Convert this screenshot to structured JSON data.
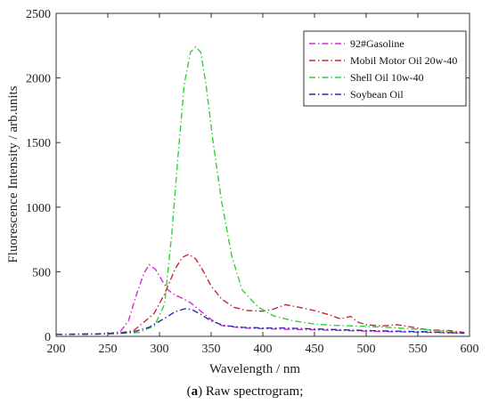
{
  "caption": {
    "open": "(",
    "letter": "a",
    "rest": ") Raw spectrogram;"
  },
  "chart_data": {
    "type": "line",
    "xlabel": "Wavelength / nm",
    "ylabel": "Fluorescence Intensity / arb.units",
    "xlim": [
      200,
      600
    ],
    "ylim": [
      0,
      2500
    ],
    "xticks": [
      200,
      250,
      300,
      350,
      400,
      450,
      500,
      550,
      600
    ],
    "yticks": [
      0,
      500,
      1000,
      1500,
      2000,
      2500
    ],
    "grid": false,
    "legend_position": "top-right",
    "series": [
      {
        "name": "92#Gasoline",
        "color": "#d42ad4",
        "x": [
          200,
          230,
          250,
          262,
          270,
          278,
          285,
          290,
          296,
          302,
          308,
          315,
          322,
          330,
          340,
          350,
          360,
          380,
          400,
          420,
          450,
          480,
          500,
          530,
          560,
          595
        ],
        "y": [
          15,
          18,
          22,
          35,
          120,
          330,
          490,
          555,
          520,
          440,
          360,
          320,
          295,
          260,
          195,
          130,
          85,
          65,
          60,
          55,
          50,
          45,
          40,
          35,
          30,
          25
        ]
      },
      {
        "name": "Mobil Motor Oil 20w-40",
        "color": "#c8282e",
        "x": [
          200,
          240,
          260,
          275,
          285,
          295,
          305,
          315,
          322,
          328,
          335,
          342,
          350,
          360,
          372,
          385,
          400,
          410,
          422,
          435,
          450,
          465,
          475,
          485,
          492,
          500,
          515,
          530,
          545,
          560,
          580,
          595
        ],
        "y": [
          15,
          18,
          25,
          45,
          110,
          180,
          330,
          520,
          610,
          635,
          600,
          510,
          390,
          290,
          225,
          200,
          195,
          210,
          245,
          225,
          200,
          165,
          135,
          155,
          110,
          90,
          80,
          90,
          70,
          50,
          45,
          30
        ]
      },
      {
        "name": "Shell Oil 10w-40",
        "color": "#2ed42e",
        "x": [
          200,
          240,
          260,
          280,
          295,
          305,
          312,
          318,
          324,
          330,
          335,
          340,
          345,
          352,
          360,
          370,
          380,
          395,
          410,
          430,
          450,
          470,
          490,
          520,
          560,
          595
        ],
        "y": [
          15,
          18,
          22,
          30,
          80,
          250,
          800,
          1400,
          1950,
          2200,
          2240,
          2200,
          1950,
          1500,
          1050,
          620,
          360,
          230,
          160,
          120,
          95,
          85,
          80,
          70,
          50,
          25
        ]
      },
      {
        "name": "Soybean Oil",
        "color": "#2a2ab0",
        "x": [
          200,
          240,
          260,
          275,
          290,
          305,
          315,
          325,
          332,
          340,
          350,
          362,
          380,
          400,
          420,
          440,
          460,
          480,
          500,
          530,
          560,
          595
        ],
        "y": [
          15,
          18,
          22,
          35,
          70,
          140,
          190,
          215,
          205,
          170,
          120,
          85,
          70,
          65,
          65,
          60,
          55,
          50,
          45,
          40,
          35,
          25
        ]
      }
    ]
  }
}
